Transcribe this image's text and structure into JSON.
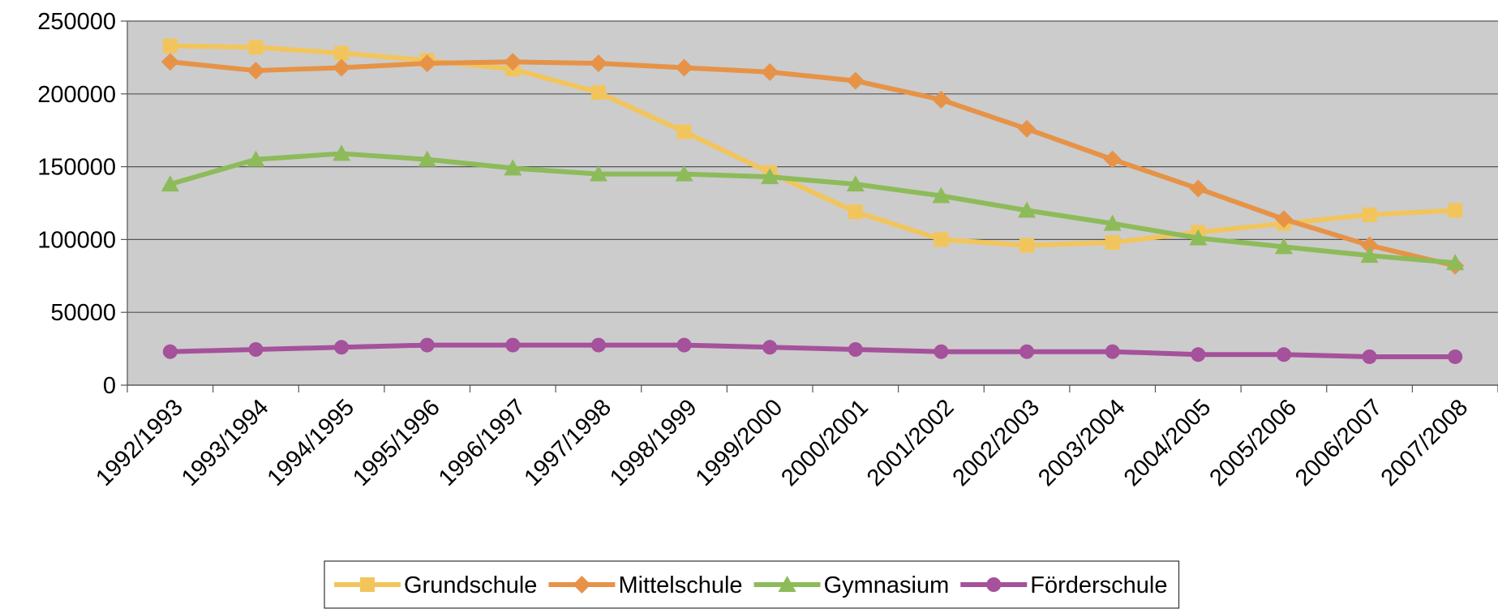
{
  "chart_data": {
    "type": "line",
    "categories": [
      "1992/1993",
      "1993/1994",
      "1994/1995",
      "1995/1996",
      "1996/1997",
      "1997/1998",
      "1998/1999",
      "1999/2000",
      "2000/2001",
      "2001/2002",
      "2002/2003",
      "2003/2004",
      "2004/2005",
      "2005/2006",
      "2006/2007",
      "2007/2008"
    ],
    "series": [
      {
        "name": "Grundschule",
        "color": "#f2c55c",
        "marker": "square",
        "values": [
          233000,
          232000,
          228000,
          223000,
          217000,
          201000,
          174000,
          146000,
          119000,
          100000,
          96000,
          98000,
          105000,
          111000,
          117000,
          120000
        ]
      },
      {
        "name": "Mittelschule",
        "color": "#e69348",
        "marker": "diamond",
        "values": [
          222000,
          216000,
          218000,
          221000,
          222000,
          221000,
          218000,
          215000,
          209000,
          196000,
          176000,
          155000,
          135000,
          114000,
          96000,
          82000
        ]
      },
      {
        "name": "Gymnasium",
        "color": "#8dbb5a",
        "marker": "triangle",
        "values": [
          138000,
          155000,
          159000,
          155000,
          149000,
          145000,
          145000,
          143000,
          138000,
          130000,
          120000,
          111000,
          101000,
          95000,
          89000,
          84000
        ]
      },
      {
        "name": "Förderschule",
        "color": "#a5519b",
        "marker": "circle",
        "values": [
          23000,
          24500,
          26000,
          27500,
          27500,
          27500,
          27500,
          26000,
          24500,
          23000,
          23000,
          23000,
          21000,
          21000,
          19500,
          19500
        ]
      }
    ],
    "ylim": [
      0,
      250000
    ],
    "yticks": [
      0,
      50000,
      100000,
      150000,
      200000,
      250000
    ],
    "grid": true,
    "legend": "bottom",
    "plot_background": "#cccccc"
  }
}
